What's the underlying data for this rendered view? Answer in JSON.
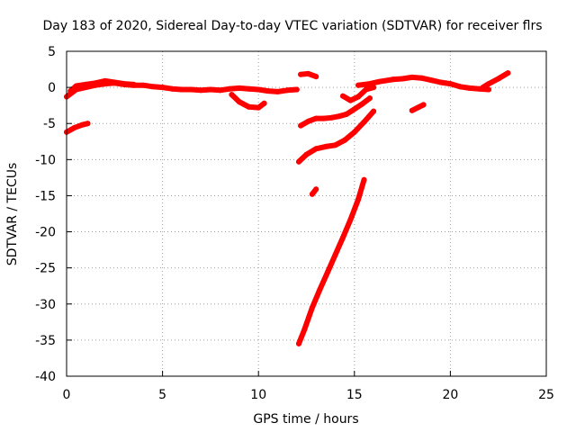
{
  "chart_data": {
    "type": "scatter",
    "title": "Day 183 of 2020, Sidereal Day-to-day VTEC variation (SDTVAR) for receiver flrs",
    "xlabel": "GPS time / hours",
    "ylabel": "SDTVAR / TECUs",
    "xlim": [
      0,
      25
    ],
    "ylim": [
      -40,
      5
    ],
    "xticks": [
      0,
      5,
      10,
      15,
      20,
      25
    ],
    "yticks": [
      5,
      0,
      -5,
      -10,
      -15,
      -20,
      -25,
      -30,
      -35,
      -40
    ],
    "grid": true,
    "color": "#ff0000",
    "series": [
      {
        "x": [
          0,
          0.5,
          1.0,
          1.5,
          2.0,
          2.5,
          3.0,
          3.5,
          4.0,
          4.5,
          5.0,
          5.5,
          6.0,
          6.5,
          7.0,
          7.5,
          8.0,
          8.5,
          9.0,
          9.5,
          10.0,
          10.5,
          11.0,
          11.5,
          12.0
        ],
        "y": [
          -1.3,
          -0.3,
          0.0,
          0.3,
          0.5,
          0.6,
          0.4,
          0.3,
          0.3,
          0.1,
          0.0,
          -0.2,
          -0.3,
          -0.3,
          -0.4,
          -0.3,
          -0.4,
          -0.2,
          -0.1,
          -0.2,
          -0.3,
          -0.5,
          -0.6,
          -0.4,
          -0.3
        ]
      },
      {
        "x": [
          0.2,
          0.5,
          1.0,
          1.5,
          2.0,
          2.5,
          3.0,
          3.5
        ],
        "y": [
          -0.5,
          0.2,
          0.4,
          0.6,
          0.9,
          0.7,
          0.5,
          0.4
        ]
      },
      {
        "x": [
          8.6,
          9.0,
          9.5,
          10.0,
          10.3
        ],
        "y": [
          -1.0,
          -2.0,
          -2.7,
          -2.8,
          -2.2
        ]
      },
      {
        "x": [
          0,
          0.4,
          0.8,
          1.1
        ],
        "y": [
          -6.2,
          -5.6,
          -5.2,
          -5.0
        ]
      },
      {
        "x": [
          12.2,
          12.6,
          13.0
        ],
        "y": [
          1.8,
          1.9,
          1.5
        ]
      },
      {
        "x": [
          12.2,
          12.6,
          13.0,
          13.4,
          13.8,
          14.2,
          14.6,
          15.0,
          15.4,
          15.8
        ],
        "y": [
          -5.3,
          -4.7,
          -4.3,
          -4.3,
          -4.2,
          -4.0,
          -3.7,
          -3.0,
          -2.3,
          -1.5
        ]
      },
      {
        "x": [
          12.1,
          12.5,
          13.0,
          13.5,
          14.0,
          14.5,
          15.0,
          15.5,
          16.0
        ],
        "y": [
          -10.3,
          -9.3,
          -8.5,
          -8.2,
          -8.0,
          -7.3,
          -6.2,
          -4.8,
          -3.3
        ]
      },
      {
        "x": [
          14.4,
          14.8,
          15.2,
          15.6,
          16.0
        ],
        "y": [
          -1.2,
          -1.8,
          -1.3,
          -0.3,
          0.0
        ]
      },
      {
        "x": [
          15.2,
          15.8,
          16.3,
          17.0,
          17.5,
          18.0,
          18.5,
          19.0,
          19.5,
          20.0,
          20.5,
          21.0,
          21.5,
          22.0
        ],
        "y": [
          0.3,
          0.5,
          0.8,
          1.1,
          1.2,
          1.4,
          1.3,
          1.0,
          0.7,
          0.5,
          0.1,
          -0.1,
          -0.2,
          -0.3
        ]
      },
      {
        "x": [
          18.0,
          18.3,
          18.6
        ],
        "y": [
          -3.2,
          -2.8,
          -2.4
        ]
      },
      {
        "x": [
          21.7,
          22.0,
          22.5,
          23.0
        ],
        "y": [
          0.0,
          0.5,
          1.2,
          2.0
        ]
      },
      {
        "x": [
          12.8,
          13.0
        ],
        "y": [
          -14.8,
          -14.1
        ]
      },
      {
        "x": [
          12.1,
          12.4,
          12.8,
          13.2,
          13.6,
          14.0,
          14.4,
          14.8,
          15.2,
          15.5
        ],
        "y": [
          -35.5,
          -33.5,
          -30.5,
          -28.0,
          -25.6,
          -23.2,
          -20.8,
          -18.3,
          -15.5,
          -12.8
        ]
      }
    ]
  }
}
